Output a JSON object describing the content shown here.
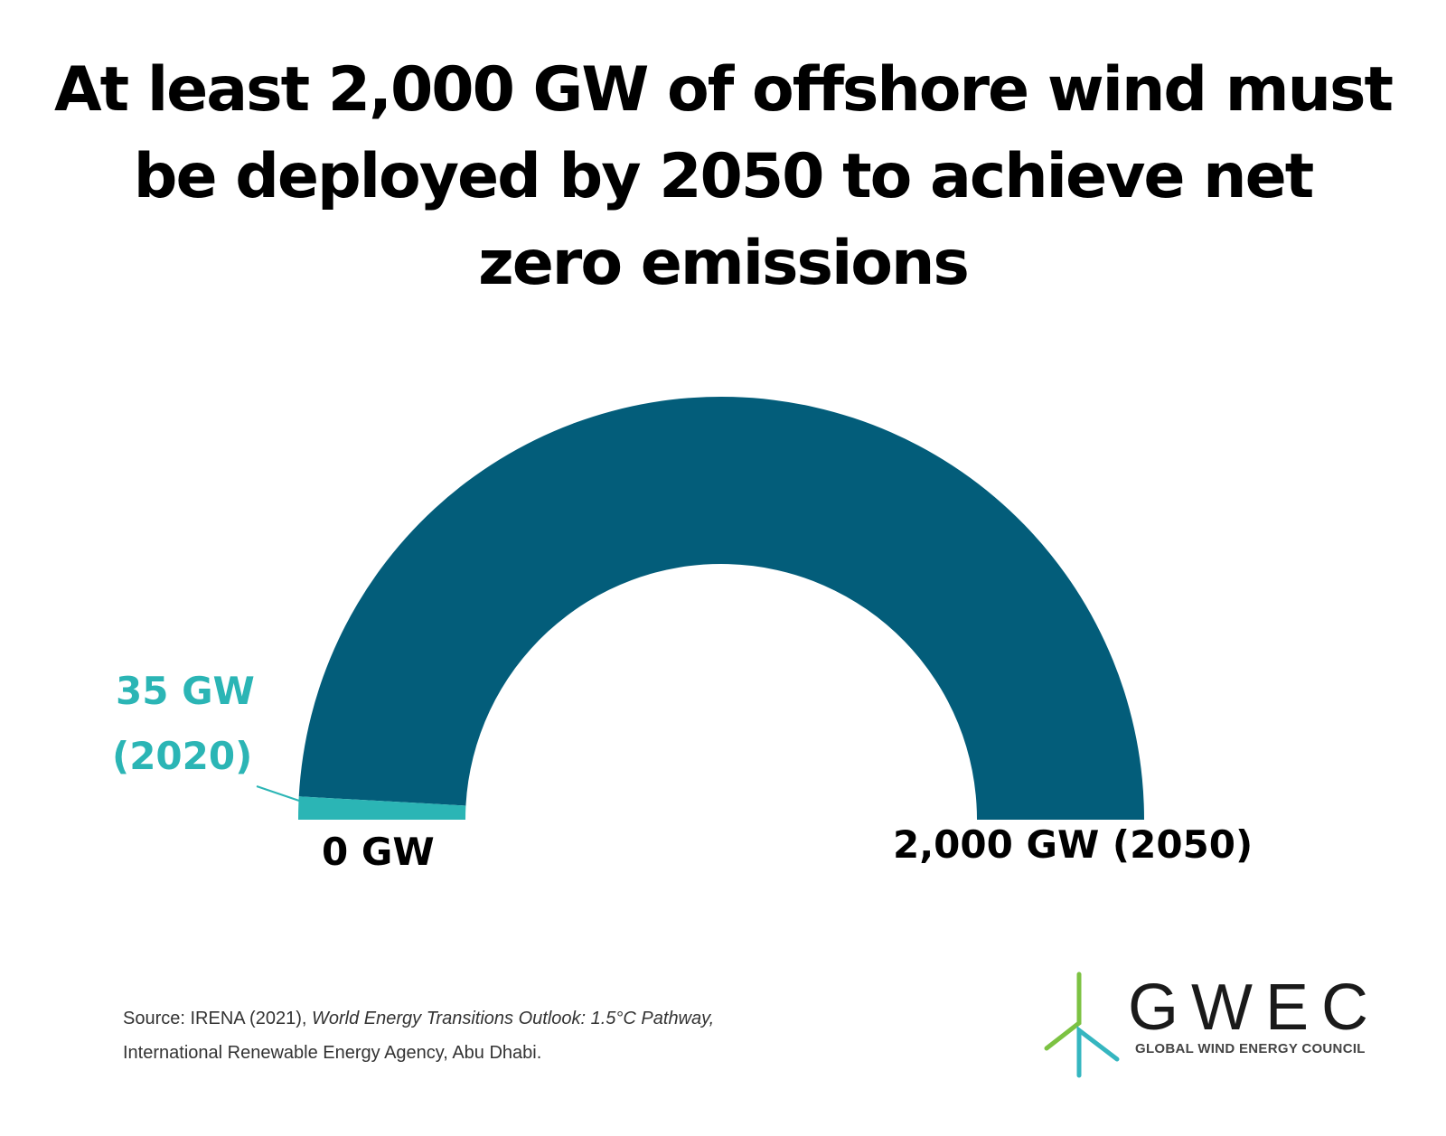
{
  "chart_data": {
    "type": "gauge",
    "title": "At least 2,000 GW of offshore wind must be deployed by 2050 to achieve net zero emissions",
    "min": 0,
    "max": 2000,
    "unit": "GW",
    "series": [
      {
        "name": "2020",
        "value": 35,
        "color": "#2bb5b5"
      },
      {
        "name": "2050 target",
        "value": 2000,
        "color": "#035d7a"
      }
    ],
    "labels": {
      "current_line1": "35 GW",
      "current_line2": "(2020)",
      "min": "0 GW",
      "max": "2,000 GW (2050)"
    }
  },
  "source": {
    "prefix": "Source: IRENA (2021), ",
    "title": "World Energy Transitions Outlook: 1.5°C Pathway,",
    "line2": "International Renewable Energy Agency, Abu Dhabi."
  },
  "logo": {
    "name": "GWEC",
    "subtitle": "GLOBAL WIND ENERGY COUNCIL"
  }
}
